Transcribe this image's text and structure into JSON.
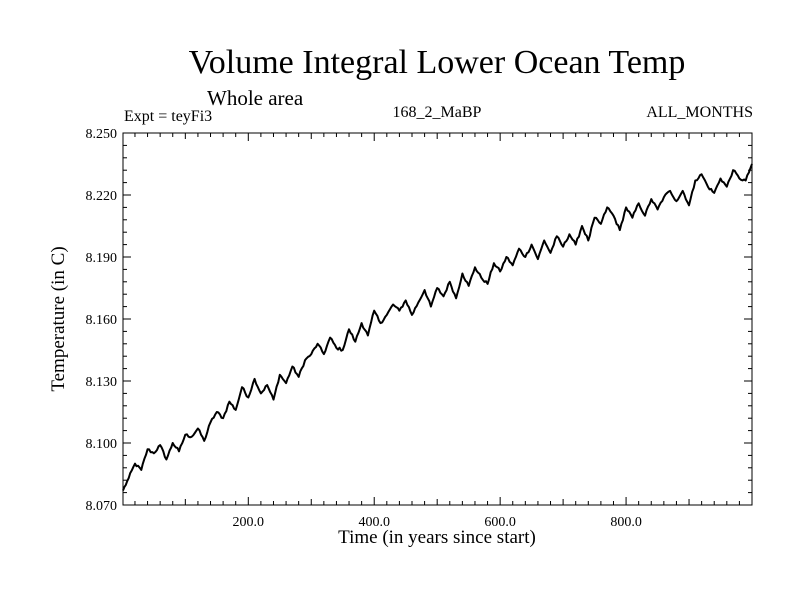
{
  "chart_data": {
    "type": "line",
    "title": "Volume Integral Lower Ocean Temp",
    "subtitle": "Whole area",
    "experiment": "Expt = teyFi3",
    "run_label": "168_2_MaBP",
    "period": "ALL_MONTHS",
    "xlabel": "Time (in years since start)",
    "ylabel": "Temperature (in C)",
    "xlim": [
      1,
      1000
    ],
    "ylim": [
      8.07,
      8.25
    ],
    "xticks": [
      200,
      400,
      600,
      800
    ],
    "xtick_labels": [
      "200.0",
      "400.0",
      "600.0",
      "800.0"
    ],
    "yticks": [
      8.07,
      8.1,
      8.13,
      8.16,
      8.19,
      8.22,
      8.25
    ],
    "ytick_labels": [
      "8.070",
      "8.100",
      "8.130",
      "8.160",
      "8.190",
      "8.220",
      "8.250"
    ],
    "series": [
      {
        "name": "Volume integral lower ocean temperature",
        "x": [
          1,
          10,
          20,
          30,
          40,
          50,
          60,
          70,
          80,
          90,
          100,
          110,
          120,
          130,
          140,
          150,
          160,
          170,
          180,
          190,
          200,
          210,
          220,
          230,
          240,
          250,
          260,
          270,
          280,
          290,
          300,
          310,
          320,
          330,
          340,
          350,
          360,
          370,
          380,
          390,
          400,
          410,
          420,
          430,
          440,
          450,
          460,
          470,
          480,
          490,
          500,
          510,
          520,
          530,
          540,
          550,
          560,
          570,
          580,
          590,
          600,
          610,
          620,
          630,
          640,
          650,
          660,
          670,
          680,
          690,
          700,
          710,
          720,
          730,
          740,
          750,
          760,
          770,
          780,
          790,
          800,
          810,
          820,
          830,
          840,
          850,
          860,
          870,
          880,
          890,
          900,
          910,
          920,
          930,
          940,
          950,
          960,
          970,
          980,
          990,
          1000
        ],
        "values": [
          8.077,
          8.083,
          8.09,
          8.087,
          8.097,
          8.095,
          8.099,
          8.092,
          8.1,
          8.096,
          8.104,
          8.103,
          8.107,
          8.101,
          8.11,
          8.115,
          8.112,
          8.12,
          8.116,
          8.127,
          8.122,
          8.131,
          8.124,
          8.128,
          8.121,
          8.133,
          8.129,
          8.137,
          8.132,
          8.14,
          8.143,
          8.148,
          8.143,
          8.151,
          8.146,
          8.145,
          8.155,
          8.149,
          8.158,
          8.152,
          8.164,
          8.158,
          8.162,
          8.167,
          8.164,
          8.169,
          8.162,
          8.168,
          8.174,
          8.166,
          8.175,
          8.171,
          8.178,
          8.17,
          8.182,
          8.176,
          8.185,
          8.18,
          8.177,
          8.187,
          8.183,
          8.19,
          8.186,
          8.194,
          8.19,
          8.196,
          8.189,
          8.198,
          8.192,
          8.2,
          8.195,
          8.201,
          8.196,
          8.205,
          8.198,
          8.209,
          8.206,
          8.214,
          8.21,
          8.203,
          8.214,
          8.209,
          8.216,
          8.21,
          8.218,
          8.213,
          8.219,
          8.222,
          8.217,
          8.222,
          8.215,
          8.227,
          8.23,
          8.224,
          8.221,
          8.228,
          8.224,
          8.232,
          8.228,
          8.227,
          8.235
        ]
      }
    ]
  }
}
